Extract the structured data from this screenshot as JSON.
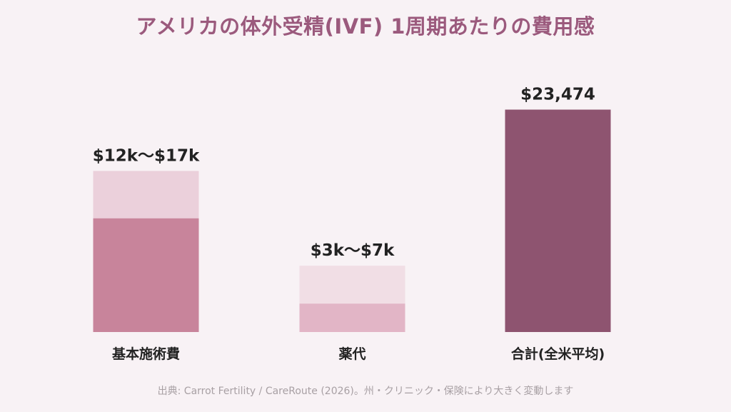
{
  "chart_data": {
    "type": "bar",
    "title": "アメリカの体外受精(IVF) 1周期あたりの費用感",
    "categories": [
      "基本施術費",
      "薬代",
      "合計(全米平均)"
    ],
    "series": [
      {
        "low": 12000,
        "high": 17000,
        "label": "$12k〜$17k"
      },
      {
        "low": 3000,
        "high": 7000,
        "label": "$3k〜$7k"
      },
      {
        "value": 23474,
        "label": "$23,474"
      }
    ],
    "ylim": [
      0,
      26000
    ],
    "grid": false,
    "legend": "none",
    "colors": {
      "base_low": "#c8849b",
      "base_high": "#ebd0db",
      "drug_low": "#e2b5c6",
      "drug_high": "#f1dee5",
      "total": "#8e5470",
      "title": "#9b5a7d",
      "source": "#a8a0a4",
      "text": "#222222"
    }
  },
  "source": "出典: Carrot Fertility / CareRoute (2026)。州・クリニック・保険により大きく変動します"
}
